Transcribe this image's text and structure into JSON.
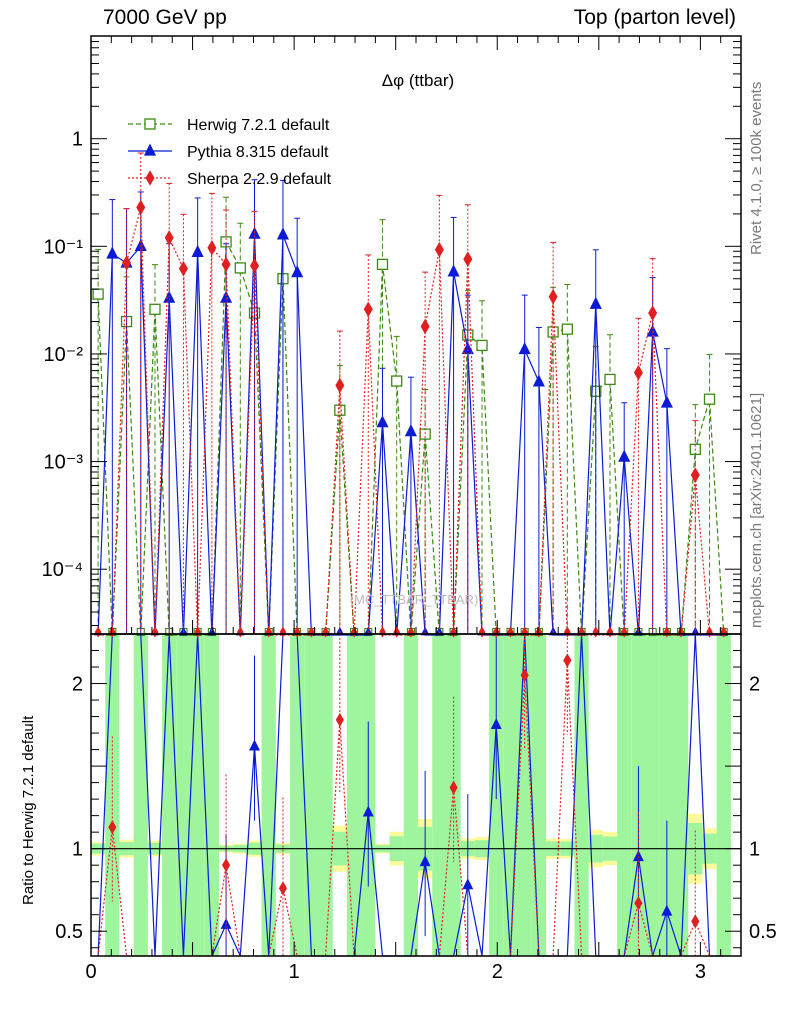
{
  "header": {
    "left": "7000 GeV pp",
    "right": "Top (parton level)"
  },
  "side_labels": {
    "rivet": "Rivet 4.1.0, ≥ 100k events",
    "mcplots": "mcplots.cern.ch [arXiv:2401.10621]"
  },
  "chart_data": {
    "type": "line",
    "title": "Δφ (ttbar)",
    "watermark": "(MC_TTBAR_TTBAR)",
    "xlim": [
      0,
      3.2
    ],
    "main": {
      "yscale": "log",
      "ylim": [
        2.5e-05,
        9
      ],
      "ytick_labels": [
        "10⁻⁴",
        "10⁻³",
        "10⁻²",
        "10⁻¹",
        "1"
      ],
      "ytick_values": [
        0.0001,
        0.001,
        0.01,
        0.1,
        1
      ]
    },
    "ratio": {
      "ylabel": "Ratio to Herwig 7.2.1 default",
      "ylim": [
        0.35,
        2.3
      ],
      "ytick_labels": [
        "0.5",
        "1",
        "2"
      ],
      "ytick_values": [
        0.5,
        1,
        2
      ]
    },
    "xtick_labels": [
      "0",
      "1",
      "2",
      "3"
    ],
    "xtick_values": [
      0,
      1,
      2,
      3
    ],
    "x": [
      0.035,
      0.105,
      0.175,
      0.245,
      0.315,
      0.385,
      0.455,
      0.525,
      0.595,
      0.665,
      0.735,
      0.805,
      0.875,
      0.945,
      1.015,
      1.085,
      1.155,
      1.225,
      1.295,
      1.365,
      1.435,
      1.505,
      1.575,
      1.645,
      1.715,
      1.785,
      1.855,
      1.925,
      1.995,
      2.065,
      2.135,
      2.205,
      2.275,
      2.345,
      2.415,
      2.485,
      2.555,
      2.625,
      2.695,
      2.765,
      2.835,
      2.905,
      2.975,
      3.045,
      3.115
    ],
    "series": [
      {
        "name": "Herwig 7.2.1 default",
        "color": "#3a8a10",
        "marker": "open-square",
        "dash": "5,3",
        "values": [
          0.036,
          0,
          0.02,
          0,
          0.026,
          0,
          0,
          0,
          0,
          0.11,
          0.063,
          0.024,
          0,
          0.05,
          0,
          0,
          0,
          0.003,
          0,
          0,
          0.068,
          0.0056,
          0,
          0.0018,
          0,
          0,
          0.015,
          0.012,
          0,
          0,
          0,
          0,
          0.016,
          0.017,
          0,
          0.0045,
          0.0058,
          0,
          0,
          0,
          0,
          0,
          0.0013,
          0.0038,
          0
        ],
        "ratio": [
          1,
          1,
          1,
          1,
          1,
          1,
          1,
          1,
          1,
          1,
          1,
          1,
          1,
          1,
          1,
          1,
          1,
          1,
          1,
          1,
          1,
          1,
          1,
          1,
          1,
          1,
          1,
          1,
          1,
          1,
          1,
          1,
          1,
          1,
          1,
          1,
          1,
          1,
          1,
          1,
          1,
          1,
          1,
          1,
          1
        ]
      },
      {
        "name": "Pythia 8.315 default",
        "color": "#0b1bd6",
        "marker": "filled-triangle",
        "dash": "",
        "values": [
          0,
          0.085,
          0.07,
          0.1,
          0,
          0.033,
          0,
          0.088,
          0,
          0.033,
          0,
          0.13,
          0,
          0.128,
          0.057,
          0,
          0,
          0,
          0,
          0,
          0.0023,
          0,
          0.0019,
          0,
          0,
          0.058,
          0.011,
          0,
          0,
          0,
          0.011,
          0.0055,
          0,
          0,
          0,
          0.029,
          0,
          0.0011,
          0,
          0.016,
          0.0035,
          0,
          0,
          0,
          0
        ],
        "ratio": [
          0,
          2.5,
          2.5,
          2.5,
          0,
          2.5,
          0,
          2.5,
          0,
          0.54,
          0,
          1.62,
          0,
          2.5,
          2.5,
          0,
          0,
          0,
          0,
          1.22,
          0,
          0,
          0,
          0.92,
          0,
          0,
          0.78,
          0,
          1.75,
          0,
          2.5,
          0,
          0,
          0,
          2.5,
          0,
          0,
          0,
          0.95,
          0,
          0.62,
          0,
          2.5,
          0,
          0
        ]
      },
      {
        "name": "Sherpa 2.2.9 default",
        "color": "#e02020",
        "marker": "filled-diamond",
        "dash": "2,2",
        "values": [
          0,
          0,
          0.07,
          0.23,
          0,
          0.12,
          0.062,
          0,
          0.097,
          0.068,
          0,
          0.066,
          0,
          0,
          0,
          0,
          0,
          0.0051,
          0,
          0.026,
          0,
          0,
          0,
          0.018,
          0.093,
          0,
          0.076,
          0,
          0,
          0,
          0,
          0,
          0.034,
          0,
          0,
          0,
          0,
          0,
          0.0067,
          0.024,
          0,
          0,
          0.00075,
          0,
          0
        ],
        "ratio": [
          0,
          1.13,
          0,
          0,
          0,
          0,
          0,
          0,
          0,
          0.9,
          0,
          0,
          0,
          0.76,
          0,
          0,
          0,
          1.78,
          0,
          0,
          0,
          0,
          0,
          0,
          0,
          1.37,
          0,
          0,
          0,
          0,
          2.05,
          0,
          0,
          2.14,
          0,
          0,
          0,
          0,
          0.67,
          0,
          0,
          0,
          0.56,
          0,
          0
        ]
      }
    ]
  }
}
